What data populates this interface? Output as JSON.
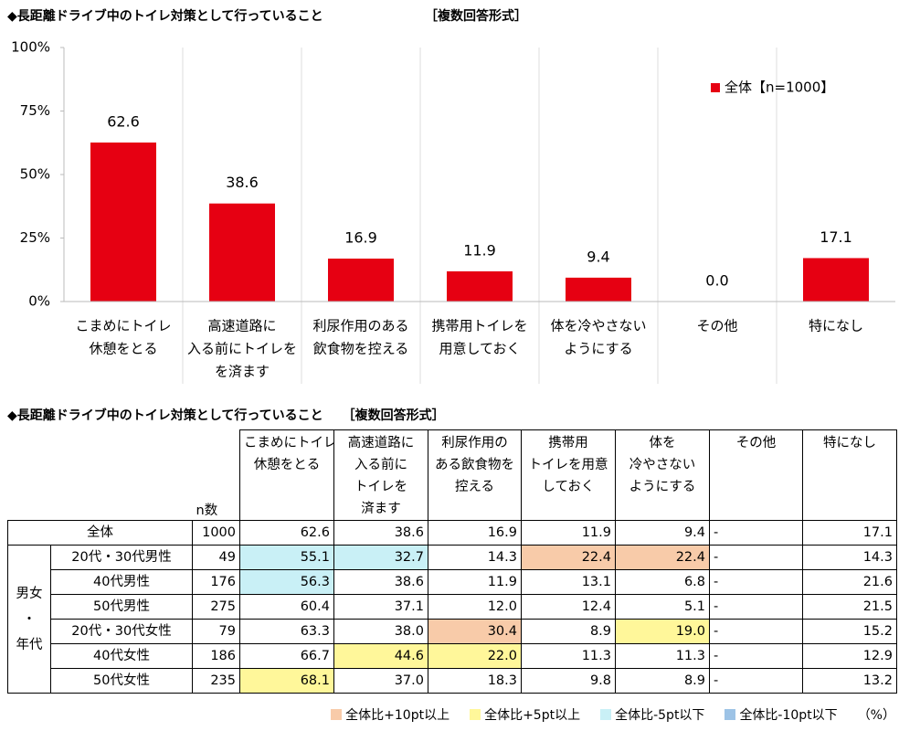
{
  "chart_data": {
    "type": "bar",
    "title": "◆長距離ドライブ中のトイレ対策として行っていること",
    "subtitle": "［複数回答形式］",
    "categories": [
      [
        "こまめにトイレ",
        "休憩をとる"
      ],
      [
        "高速道路に",
        "入る前にトイレを",
        "を済ます"
      ],
      [
        "利尿作用のある",
        "飲食物を控える"
      ],
      [
        "携帯用トイレを",
        "用意しておく"
      ],
      [
        "体を冷やさない",
        "ようにする"
      ],
      [
        "その他"
      ],
      [
        "特になし"
      ]
    ],
    "series": [
      {
        "name": "全体【n=1000】",
        "color": "#e60012",
        "values": [
          62.6,
          38.6,
          16.9,
          11.9,
          9.4,
          0.0,
          17.1
        ],
        "value_labels": [
          "62.6",
          "38.6",
          "16.9",
          "11.9",
          "9.4",
          "0.0",
          "17.1"
        ]
      }
    ],
    "ylim": [
      0,
      100
    ],
    "yticks": [
      {
        "value": 0,
        "label": "0%"
      },
      {
        "value": 25,
        "label": "25%"
      },
      {
        "value": 50,
        "label": "50%"
      },
      {
        "value": 75,
        "label": "75%"
      },
      {
        "value": 100,
        "label": "100%"
      }
    ],
    "grid": false,
    "legend": "upper-right"
  },
  "table": {
    "title": "◆長距離ドライブ中のトイレ対策として行っていること",
    "subtitle": "［複数回答形式］",
    "n_header": "n数",
    "columns": [
      [
        "こまめにトイレ",
        "休憩をとる"
      ],
      [
        "高速道路に",
        "入る前に",
        "トイレを",
        "済ます"
      ],
      [
        "利尿作用の",
        "ある飲食物を",
        "控える"
      ],
      [
        "携帯用",
        "トイレを用意",
        "しておく"
      ],
      [
        "体を",
        "冷やさない",
        "ようにする"
      ],
      [
        "その他"
      ],
      [
        "特になし"
      ]
    ],
    "total": {
      "label": "全体",
      "n": "1000",
      "values": [
        "62.6",
        "38.6",
        "16.9",
        "11.9",
        "9.4",
        "-",
        "17.1"
      ]
    },
    "group_label": [
      "男女",
      "・",
      "年代"
    ],
    "rows": [
      {
        "label": "20代・30代男性",
        "n": "49",
        "values": [
          "55.1",
          "32.7",
          "14.3",
          "22.4",
          "22.4",
          "-",
          "14.3"
        ],
        "highlight": [
          2,
          2,
          null,
          0,
          0,
          null,
          null
        ]
      },
      {
        "label": "40代男性",
        "n": "176",
        "values": [
          "56.3",
          "38.6",
          "11.9",
          "13.1",
          "6.8",
          "-",
          "21.6"
        ],
        "highlight": [
          2,
          null,
          null,
          null,
          null,
          null,
          null
        ]
      },
      {
        "label": "50代男性",
        "n": "275",
        "values": [
          "60.4",
          "37.1",
          "12.0",
          "12.4",
          "5.1",
          "-",
          "21.5"
        ],
        "highlight": [
          null,
          null,
          null,
          null,
          null,
          null,
          null
        ]
      },
      {
        "label": "20代・30代女性",
        "n": "79",
        "values": [
          "63.3",
          "38.0",
          "30.4",
          "8.9",
          "19.0",
          "-",
          "15.2"
        ],
        "highlight": [
          null,
          null,
          0,
          null,
          1,
          null,
          null
        ]
      },
      {
        "label": "40代女性",
        "n": "186",
        "values": [
          "66.7",
          "44.6",
          "22.0",
          "11.3",
          "11.3",
          "-",
          "12.9"
        ],
        "highlight": [
          null,
          1,
          1,
          null,
          null,
          null,
          null
        ]
      },
      {
        "label": "50代女性",
        "n": "235",
        "values": [
          "68.1",
          "37.0",
          "18.3",
          "9.8",
          "8.9",
          "-",
          "13.2"
        ],
        "highlight": [
          1,
          null,
          null,
          null,
          null,
          null,
          null
        ]
      }
    ],
    "legend": [
      {
        "label": "全体比+10pt以上",
        "color": "#f8cba9"
      },
      {
        "label": "全体比+5pt以上",
        "color": "#fff79a"
      },
      {
        "label": "全体比-5pt以下",
        "color": "#c9f0f6"
      },
      {
        "label": "全体比-10pt以下",
        "color": "#9dc3e6"
      }
    ],
    "unit": "（%）"
  }
}
